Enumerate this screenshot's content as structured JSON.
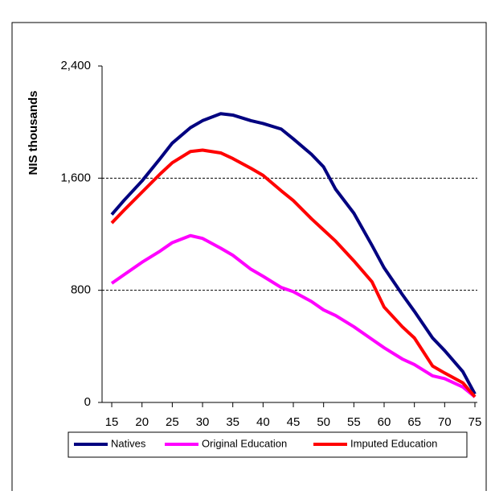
{
  "chart_data": {
    "type": "line",
    "y_label": "NIS thousands",
    "x": [
      15,
      17,
      20,
      23,
      25,
      28,
      30,
      33,
      35,
      38,
      40,
      43,
      45,
      48,
      50,
      52,
      55,
      58,
      60,
      63,
      65,
      68,
      70,
      73,
      75
    ],
    "series": [
      {
        "name": "Natives",
        "color": "#000080",
        "values": [
          1340,
          1440,
          1580,
          1740,
          1850,
          1960,
          2010,
          2060,
          2050,
          2010,
          1990,
          1950,
          1880,
          1770,
          1680,
          1520,
          1350,
          1120,
          960,
          770,
          650,
          460,
          370,
          220,
          60
        ]
      },
      {
        "name": "Original Education",
        "color": "#ff00ff",
        "values": [
          850,
          910,
          1000,
          1080,
          1140,
          1190,
          1170,
          1100,
          1050,
          950,
          900,
          820,
          790,
          720,
          660,
          620,
          540,
          450,
          390,
          310,
          270,
          190,
          170,
          110,
          40
        ]
      },
      {
        "name": "Imputed Education",
        "color": "#ff0000",
        "values": [
          1280,
          1370,
          1500,
          1630,
          1710,
          1790,
          1800,
          1780,
          1740,
          1670,
          1620,
          1510,
          1440,
          1310,
          1230,
          1150,
          1010,
          860,
          680,
          540,
          460,
          260,
          210,
          140,
          40
        ]
      }
    ],
    "xlim": [
      13.4,
      75.4
    ],
    "xticks": [
      15,
      20,
      25,
      30,
      35,
      40,
      45,
      50,
      55,
      60,
      65,
      70,
      75
    ],
    "ylim": [
      0,
      2400
    ],
    "yticks": [
      0,
      {
        "value": 800,
        "label": "800"
      },
      {
        "value": 1600,
        "label": "1,600"
      },
      {
        "value": 2400,
        "label": "2,400"
      }
    ],
    "grid": true,
    "legend": "bottom"
  }
}
